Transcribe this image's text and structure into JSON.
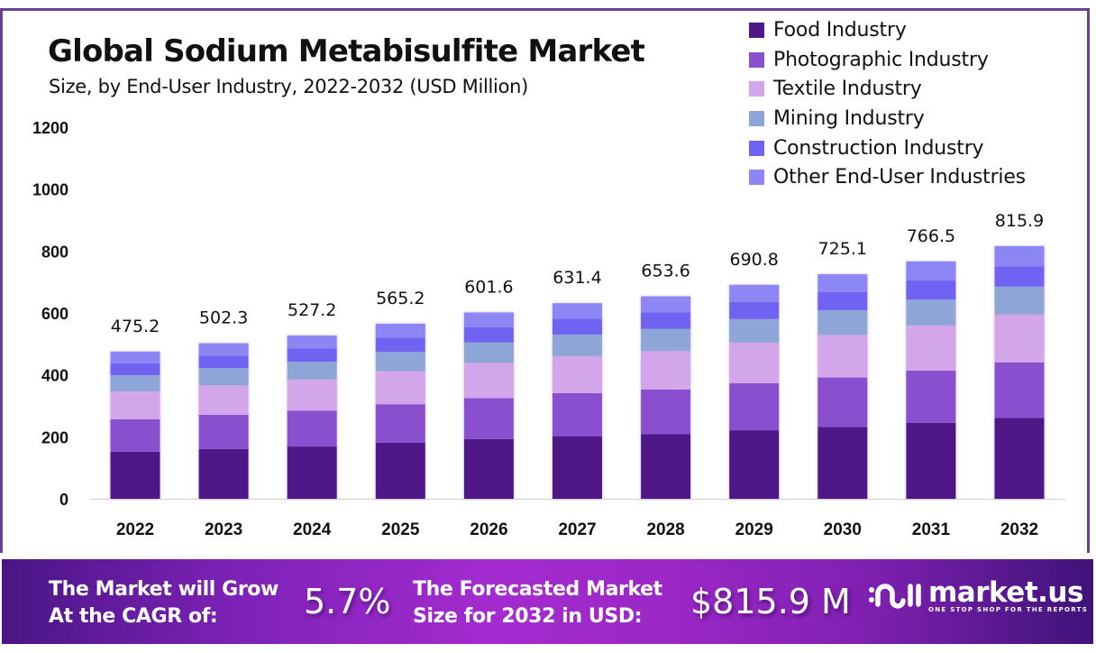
{
  "title": "Global Sodium Metabisulfite Market",
  "subtitle": "Size, by End-User Industry, 2022-2032 (USD Million)",
  "legend": [
    {
      "label": "Food Industry",
      "color": "#4f1787"
    },
    {
      "label": "Photographic Industry",
      "color": "#8a4fce"
    },
    {
      "label": "Textile Industry",
      "color": "#d3a5ea"
    },
    {
      "label": "Mining Industry",
      "color": "#8ea5d8"
    },
    {
      "label": "Construction Industry",
      "color": "#6f63f2"
    },
    {
      "label": "Other End-User Industries",
      "color": "#8c87f5"
    }
  ],
  "chart_data": {
    "type": "bar",
    "stacked": true,
    "title": "Global Sodium Metabisulfite Market",
    "subtitle": "Size, by End-User Industry, 2022-2032 (USD Million)",
    "xlabel": "",
    "ylabel": "",
    "ylim": [
      0,
      1200
    ],
    "yticks": [
      0,
      200,
      400,
      600,
      800,
      1000,
      1200
    ],
    "grid": false,
    "legend_position": "top-right",
    "categories": [
      "2022",
      "2023",
      "2024",
      "2025",
      "2026",
      "2027",
      "2028",
      "2029",
      "2030",
      "2031",
      "2032"
    ],
    "totals": [
      475.2,
      502.3,
      527.2,
      565.2,
      601.6,
      631.4,
      653.6,
      690.8,
      725.1,
      766.5,
      815.9
    ],
    "series": [
      {
        "name": "Food Industry",
        "color": "#4f1787",
        "values": [
          152.1,
          160.7,
          168.7,
          180.9,
          192.5,
          202.0,
          209.2,
          221.1,
          232.0,
          245.3,
          261.1
        ]
      },
      {
        "name": "Photographic Industry",
        "color": "#8a4fce",
        "values": [
          104.5,
          110.5,
          116.0,
          124.3,
          132.4,
          138.9,
          143.8,
          152.0,
          159.5,
          168.6,
          179.5
        ]
      },
      {
        "name": "Textile Industry",
        "color": "#d3a5ea",
        "values": [
          90.3,
          95.4,
          100.2,
          107.4,
          114.3,
          120.0,
          124.2,
          131.3,
          137.8,
          145.6,
          155.0
        ]
      },
      {
        "name": "Mining Industry",
        "color": "#8ea5d8",
        "values": [
          52.3,
          55.3,
          58.0,
          62.2,
          66.2,
          69.5,
          71.9,
          76.0,
          79.8,
          84.3,
          89.7
        ]
      },
      {
        "name": "Construction Industry",
        "color": "#6f63f2",
        "values": [
          38.0,
          40.2,
          42.2,
          45.2,
          48.1,
          50.5,
          52.3,
          55.2,
          58.0,
          61.3,
          65.3
        ]
      },
      {
        "name": "Other End-User Industries",
        "color": "#8c87f5",
        "values": [
          38.0,
          40.2,
          42.1,
          45.2,
          48.1,
          50.5,
          52.2,
          55.2,
          58.0,
          61.4,
          65.3
        ]
      }
    ]
  },
  "banner": {
    "cagr_text_line1": "The Market will Grow",
    "cagr_text_line2": "At the CAGR of:",
    "cagr_value": "5.7%",
    "forecast_text_line1": "The Forecasted Market",
    "forecast_text_line2": "Size for 2032 in USD:",
    "forecast_value": "$815.9 M",
    "logo_name": "market.us",
    "logo_tagline": "ONE STOP SHOP FOR THE REPORTS"
  }
}
